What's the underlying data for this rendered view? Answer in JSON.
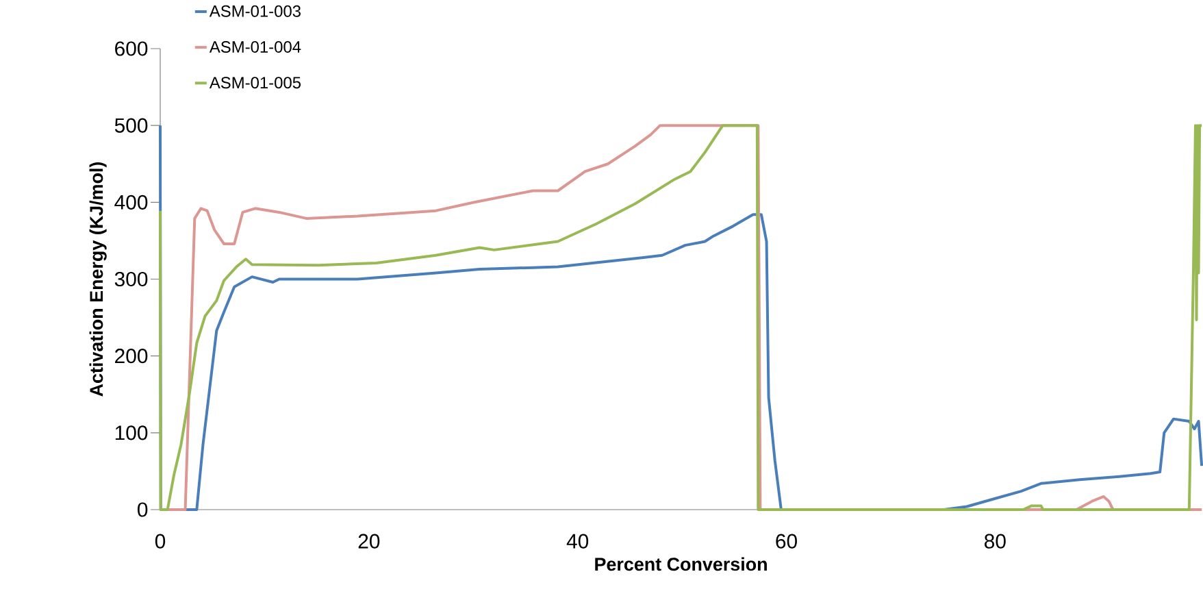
{
  "chart_data": {
    "type": "line",
    "xlabel": "Percent Conversion",
    "ylabel": "Activation Energy (KJ/mol)",
    "xlim": [
      0,
      99.8
    ],
    "xticks": [
      0,
      20,
      40,
      60,
      80
    ],
    "ylim": [
      0,
      600
    ],
    "yticks": [
      0,
      100,
      200,
      300,
      400,
      500,
      600
    ],
    "legend": "top left",
    "marker": "none",
    "line_style": "solid",
    "series": [
      {
        "name": "ASM-01-003",
        "color": "#4a7ebb",
        "x": [
          0,
          0.05,
          3.5,
          4.1,
          5.4,
          6.1,
          7.1,
          8.8,
          10.8,
          11.4,
          18.9,
          26.4,
          30.6,
          35.7,
          38.1,
          46.3,
          48.1,
          50.3,
          52.2,
          53,
          54.9,
          56.8,
          57.6,
          58.1,
          58.3,
          58.9,
          59.5,
          75.1,
          77.3,
          79.9,
          82.5,
          84.4,
          88.1,
          91.9,
          94.9,
          95.8,
          96.2,
          97.1,
          98.6,
          99.1,
          99.5,
          99.8
        ],
        "values": [
          500,
          0,
          0,
          85,
          233,
          257,
          290,
          303,
          296,
          300,
          300,
          308,
          313,
          315,
          316,
          328,
          331,
          344,
          349,
          356,
          369,
          384,
          384,
          349,
          146,
          64,
          0,
          0,
          4,
          14,
          24,
          34,
          39,
          43,
          47,
          49,
          100,
          118,
          115,
          105,
          115,
          57
        ]
      },
      {
        "name": "ASM-01-004",
        "color": "#dd9792",
        "x": [
          0,
          2.4,
          3.3,
          3.9,
          4.5,
          5.2,
          6.1,
          7.1,
          7.9,
          9.1,
          11.4,
          14,
          18.9,
          26.4,
          30.1,
          35.7,
          38.1,
          40.7,
          42.9,
          45.5,
          47,
          47.9,
          57.3,
          57.5,
          87.8,
          89.3,
          90.4,
          90.9,
          91.3,
          99.8
        ],
        "values": [
          0,
          0,
          379,
          392,
          389,
          364,
          346,
          346,
          387,
          392,
          387,
          379,
          382,
          389,
          400,
          415,
          415,
          440,
          450,
          473,
          488,
          500,
          500,
          0,
          0,
          11,
          17,
          11,
          0,
          0
        ]
      },
      {
        "name": "ASM-01-005",
        "color": "#98b954",
        "x": [
          0,
          0.05,
          0.7,
          1.3,
          2.0,
          2.8,
          3.5,
          4.3,
          5.4,
          6.1,
          7.3,
          8.2,
          8.8,
          15.1,
          20.7,
          26.4,
          30.6,
          32,
          38.1,
          41.8,
          45.5,
          49.3,
          50.8,
          52.2,
          53.9,
          57.2,
          57.3,
          82.7,
          83.5,
          84.4,
          84.6,
          98.6,
          99.0,
          99.2,
          99.3,
          99.4,
          99.5,
          99.6,
          99.8
        ],
        "values": [
          389,
          0,
          0,
          44,
          85,
          151,
          217,
          252,
          272,
          298,
          316,
          326,
          319,
          318,
          321,
          331,
          341,
          338,
          349,
          372,
          398,
          430,
          440,
          465,
          500,
          500,
          0,
          0,
          5,
          5,
          0,
          0,
          308,
          500,
          247,
          500,
          308,
          500,
          500
        ]
      }
    ]
  }
}
